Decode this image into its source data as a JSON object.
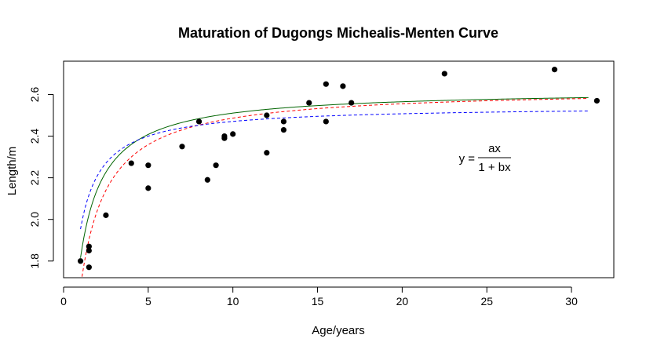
{
  "chart_data": {
    "type": "scatter",
    "title": "Maturation of Dugongs Michealis-Menten Curve",
    "xlabel": "Age/years",
    "ylabel": "Length/m",
    "xlim": [
      0,
      32.5
    ],
    "ylim": [
      1.72,
      2.76
    ],
    "xticks": [
      0,
      5,
      10,
      15,
      20,
      25,
      30
    ],
    "yticks": [
      1.8,
      2.0,
      2.2,
      2.4,
      2.6
    ],
    "grid": false,
    "legend": "none",
    "equation": {
      "lhs": "y =",
      "numerator": "ax",
      "denominator": "1 + bx"
    },
    "points": {
      "color": "#000000",
      "x": [
        1.0,
        1.5,
        1.5,
        1.5,
        2.5,
        4.0,
        5.0,
        5.0,
        7.0,
        8.0,
        8.5,
        9.0,
        9.5,
        9.5,
        10.0,
        12.0,
        12.0,
        13.0,
        13.0,
        14.5,
        15.5,
        15.5,
        16.5,
        17.0,
        22.5,
        29.0,
        31.5
      ],
      "y": [
        1.8,
        1.85,
        1.87,
        1.77,
        2.02,
        2.27,
        2.15,
        2.26,
        2.35,
        2.47,
        2.19,
        2.26,
        2.4,
        2.39,
        2.41,
        2.5,
        2.32,
        2.43,
        2.47,
        2.56,
        2.65,
        2.47,
        2.64,
        2.56,
        2.7,
        2.72,
        2.57
      ]
    },
    "curves": [
      {
        "a": 5.9,
        "b": 2.25,
        "color": "#006400",
        "style": "solid",
        "x_range": [
          1.0,
          31.0
        ]
      },
      {
        "a": 4.6,
        "b": 1.75,
        "color": "#ff0000",
        "style": "dashed",
        "x_range": [
          1.0,
          31.0
        ]
      },
      {
        "a": 8.4,
        "b": 3.3,
        "color": "#0000ff",
        "style": "dashed",
        "x_range": [
          1.0,
          31.0
        ]
      }
    ]
  }
}
